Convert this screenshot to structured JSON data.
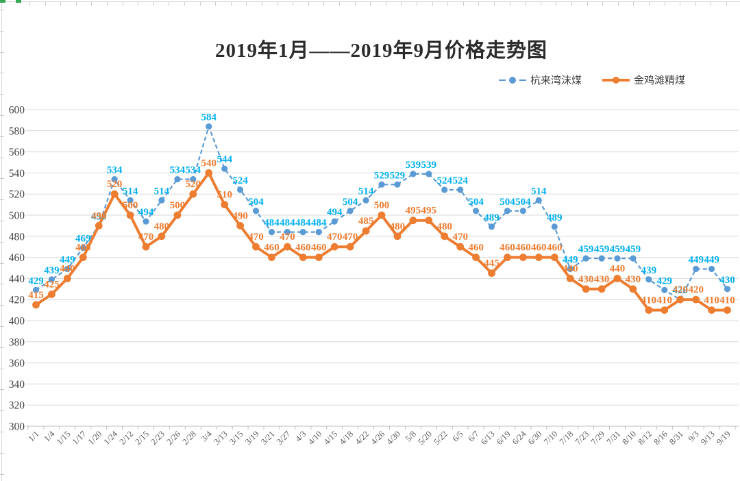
{
  "chart_data": {
    "type": "line",
    "title": "2019年1月——2019年9月价格走势图",
    "xlabel": "",
    "ylabel": "",
    "ylim": [
      300,
      600
    ],
    "ytick_step": 20,
    "grid": true,
    "legend_position": "top-right",
    "categories": [
      "1/1",
      "1/4",
      "1/15",
      "1/17",
      "1/20",
      "1/24",
      "2/12",
      "2/15",
      "2/23",
      "2/26",
      "2/28",
      "3/4",
      "3/13",
      "3/15",
      "3/19",
      "3/21",
      "3/27",
      "4/3",
      "4/10",
      "4/15",
      "4/18",
      "4/22",
      "4/26",
      "4/30",
      "5/8",
      "5/20",
      "5/22",
      "6/5",
      "6/7",
      "6/13",
      "6/19",
      "6/24",
      "6/30",
      "7/10",
      "7/18",
      "7/23",
      "7/29",
      "7/31",
      "8/10",
      "8/12",
      "8/16",
      "8/31",
      "9/3",
      "9/13",
      "9/19"
    ],
    "series": [
      {
        "name": "杭来湾沫煤",
        "color": "#5b9bd5",
        "label_color": "#00b0f0",
        "line_style": "dashed",
        "values": [
          429,
          439,
          449,
          469,
          490,
          534,
          514,
          494,
          514,
          534,
          534,
          584,
          544,
          524,
          504,
          484,
          484,
          484,
          484,
          494,
          504,
          514,
          529,
          529,
          539,
          539,
          524,
          524,
          504,
          489,
          504,
          504,
          514,
          489,
          449,
          459,
          459,
          459,
          459,
          439,
          429,
          420,
          449,
          449,
          430
        ]
      },
      {
        "name": "金鸡滩精煤",
        "color": "#ed7d31",
        "label_color": "#ed7d31",
        "line_style": "solid",
        "values": [
          415,
          425,
          440,
          460,
          490,
          520,
          500,
          470,
          480,
          500,
          520,
          540,
          510,
          490,
          470,
          460,
          470,
          460,
          460,
          470,
          470,
          485,
          500,
          480,
          495,
          495,
          480,
          470,
          460,
          445,
          460,
          460,
          460,
          460,
          440,
          430,
          430,
          440,
          430,
          410,
          410,
          420,
          420,
          410,
          410
        ]
      }
    ]
  }
}
